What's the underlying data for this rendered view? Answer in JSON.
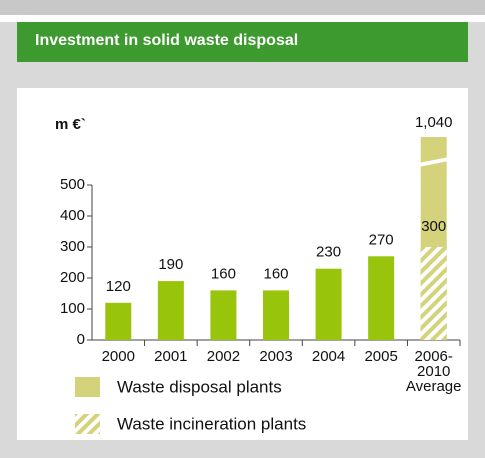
{
  "header": {
    "title": "Investment in solid waste disposal"
  },
  "chart_data": {
    "type": "bar",
    "ylabel": "m €`",
    "categories": [
      "2000",
      "2001",
      "2002",
      "2003",
      "2004",
      "2005",
      "2006-\n2010\nAverage"
    ],
    "values": [
      120,
      190,
      160,
      160,
      230,
      270,
      null
    ],
    "color": "#99c40c",
    "series": [
      {
        "name": "Waste disposal plants",
        "color": "#d4d27a",
        "values": [
          null,
          null,
          null,
          null,
          null,
          null,
          1040
        ],
        "value_labels": [
          null,
          null,
          null,
          null,
          null,
          null,
          "1,040"
        ]
      },
      {
        "name": "Waste incineration plants",
        "color": "#d4d27a",
        "pattern": "hatch",
        "values": [
          null,
          null,
          null,
          null,
          null,
          null,
          300
        ]
      }
    ],
    "ylim": [
      0,
      500
    ],
    "yticks": [
      0,
      100,
      200,
      300,
      400,
      500
    ],
    "grid": false
  }
}
